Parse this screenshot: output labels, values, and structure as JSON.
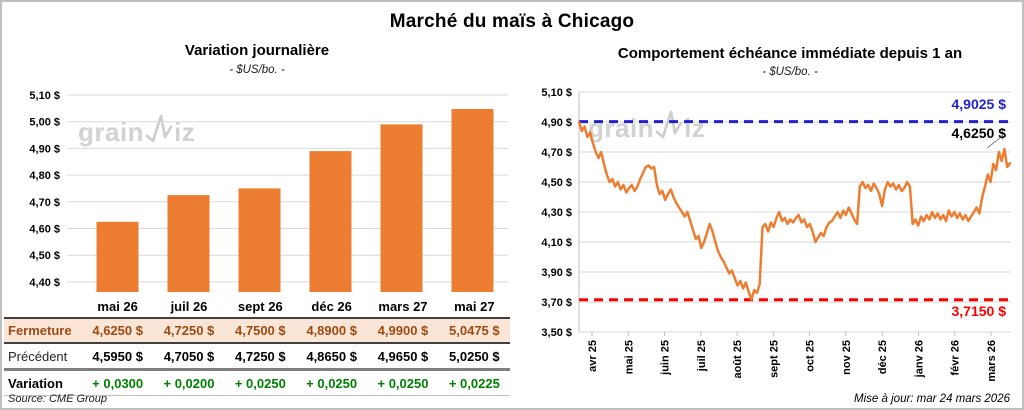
{
  "title": "Marché du maïs à Chicago",
  "brand": {
    "left": "grain",
    "right": "iz"
  },
  "left_chart": {
    "title": "Variation journalière",
    "subtitle": "- $US/bo. -"
  },
  "right_chart": {
    "title": "Comportement  échéance immédiate depuis 1 an",
    "subtitle": "- $US/bo. -",
    "high_label": "4,9025 $",
    "last_label": "4,6250 $",
    "low_label": "3,7150 $",
    "updated": "Mise à jour: mar 24 mars 2026"
  },
  "table": {
    "columns": [
      "mai 26",
      "juil 26",
      "sept 26",
      "déc 26",
      "mars 27",
      "mai 27"
    ],
    "rows": [
      {
        "label": "Fermeture",
        "values": [
          "4,6250 $",
          "4,7250 $",
          "4,7500 $",
          "4,8900 $",
          "4,9900 $",
          "5,0475 $"
        ]
      },
      {
        "label": "Précédent",
        "values": [
          "4,5950 $",
          "4,7050 $",
          "4,7250 $",
          "4,8650 $",
          "4,9650 $",
          "5,0250 $"
        ]
      },
      {
        "label": "Variation",
        "values": [
          "+ 0,0300",
          "+ 0,0200",
          "+ 0,0250",
          "+ 0,0250",
          "+ 0,0250",
          "+ 0,0225"
        ]
      }
    ],
    "source": "Source: CME Group"
  },
  "colors": {
    "orange": "#ED7D31",
    "blue": "#2222CC",
    "red": "#FF0000",
    "green": "#008000",
    "brown": "#9C4B12",
    "peach": "#FBE5D6",
    "grid": "#D9D9D9",
    "axis": "#BFBFBF"
  },
  "chart_data": [
    {
      "type": "bar",
      "title": "Variation journalière",
      "ylabel": "$US/bo.",
      "categories": [
        "mai 26",
        "juil 26",
        "sept 26",
        "déc 26",
        "mars 27",
        "mai 27"
      ],
      "values": [
        4.625,
        4.725,
        4.75,
        4.89,
        4.99,
        5.0475
      ],
      "ylim": [
        4.36,
        5.1
      ],
      "grid": true,
      "yticks": [
        {
          "v": 5.1,
          "label": "5,10 $"
        },
        {
          "v": 5.0,
          "label": "5,00 $"
        },
        {
          "v": 4.9,
          "label": "4,90 $"
        },
        {
          "v": 4.8,
          "label": "4,80 $"
        },
        {
          "v": 4.7,
          "label": "4,70 $"
        },
        {
          "v": 4.6,
          "label": "4,60 $"
        },
        {
          "v": 4.5,
          "label": "4,50 $"
        },
        {
          "v": 4.4,
          "label": "4,40 $"
        }
      ]
    },
    {
      "type": "line",
      "title": "Comportement échéance immédiate depuis 1 an",
      "ylabel": "$US/bo.",
      "x_labels": [
        "avr 25",
        "mai 25",
        "juin 25",
        "juil 25",
        "août 25",
        "sept 25",
        "oct 25",
        "nov 25",
        "déc 25",
        "janv 26",
        "févr 26",
        "mars 26"
      ],
      "ylim": [
        3.5,
        5.1
      ],
      "grid": true,
      "high": 4.9025,
      "low": 3.715,
      "last": 4.625,
      "values": [
        4.9,
        4.84,
        4.87,
        4.8,
        4.83,
        4.76,
        4.7,
        4.66,
        4.7,
        4.62,
        4.55,
        4.5,
        4.52,
        4.47,
        4.5,
        4.45,
        4.48,
        4.43,
        4.46,
        4.48,
        4.44,
        4.47,
        4.52,
        4.56,
        4.6,
        4.61,
        4.59,
        4.6,
        4.48,
        4.42,
        4.44,
        4.38,
        4.42,
        4.45,
        4.4,
        4.36,
        4.33,
        4.3,
        4.27,
        4.3,
        4.24,
        4.18,
        4.12,
        4.14,
        4.06,
        4.1,
        4.16,
        4.22,
        4.17,
        4.1,
        4.04,
        4.0,
        3.97,
        3.93,
        3.89,
        3.91,
        3.86,
        3.81,
        3.84,
        3.79,
        3.83,
        3.77,
        3.715,
        3.78,
        3.76,
        3.82,
        4.2,
        4.22,
        4.17,
        4.23,
        4.2,
        4.26,
        4.3,
        4.24,
        4.26,
        4.22,
        4.25,
        4.23,
        4.26,
        4.28,
        4.23,
        4.25,
        4.2,
        4.22,
        4.17,
        4.1,
        4.13,
        4.16,
        4.14,
        4.2,
        4.23,
        4.24,
        4.27,
        4.3,
        4.26,
        4.31,
        4.28,
        4.33,
        4.29,
        4.25,
        4.22,
        4.47,
        4.5,
        4.46,
        4.48,
        4.44,
        4.49,
        4.46,
        4.42,
        4.34,
        4.45,
        4.5,
        4.47,
        4.49,
        4.45,
        4.48,
        4.44,
        4.46,
        4.5,
        4.47,
        4.22,
        4.25,
        4.21,
        4.27,
        4.24,
        4.28,
        4.25,
        4.3,
        4.26,
        4.29,
        4.25,
        4.28,
        4.24,
        4.31,
        4.27,
        4.3,
        4.26,
        4.29,
        4.25,
        4.28,
        4.24,
        4.27,
        4.3,
        4.33,
        4.29,
        4.4,
        4.47,
        4.55,
        4.5,
        4.62,
        4.58,
        4.7,
        4.64,
        4.72,
        4.6,
        4.625
      ]
    }
  ]
}
